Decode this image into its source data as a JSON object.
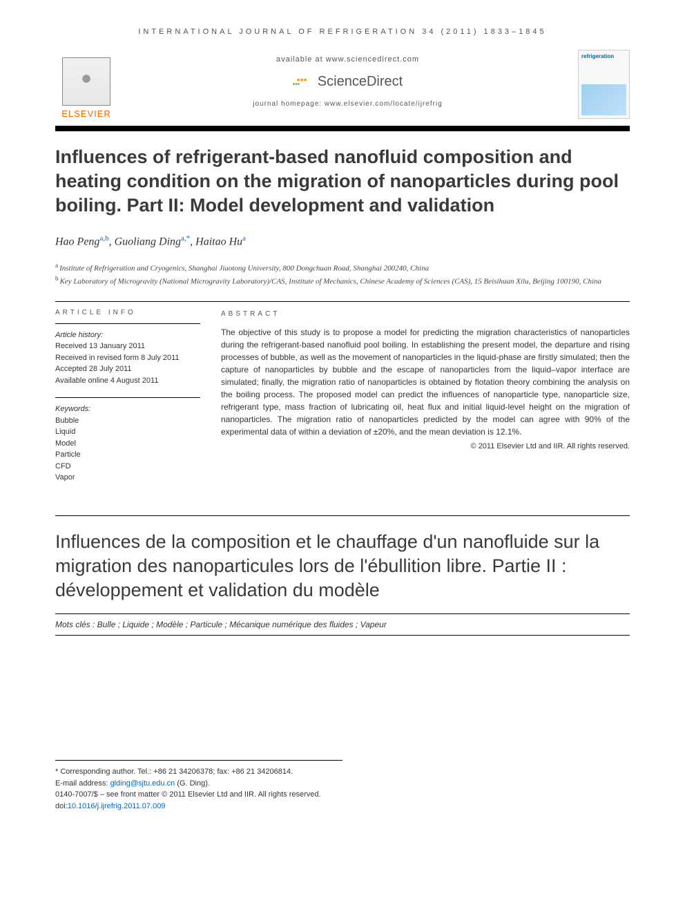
{
  "journal_header": "INTERNATIONAL JOURNAL OF REFRIGERATION 34 (2011) 1833–1845",
  "publisher": {
    "elsevier": "ELSEVIER",
    "available_at": "available at www.sciencedirect.com",
    "sciencedirect": "ScienceDirect",
    "homepage": "journal homepage: www.elsevier.com/locate/ijrefrig",
    "cover_title": "refrigeration"
  },
  "title": "Influences of refrigerant-based nanofluid composition and heating condition on the migration of nanoparticles during pool boiling. Part II: Model development and validation",
  "authors": {
    "a1_name": "Hao Peng",
    "a1_sup": "a,b",
    "a2_name": "Guoliang Ding",
    "a2_sup": "a,*",
    "a3_name": "Haitao Hu",
    "a3_sup": "a"
  },
  "affiliations": {
    "a": "Institute of Refrigeration and Cryogenics, Shanghai Jiaotong University, 800 Dongchuan Road, Shanghai 200240, China",
    "b": "Key Laboratory of Microgravity (National Microgravity Laboratory)/CAS, Institute of Mechanics, Chinese Academy of Sciences (CAS), 15 Beisihuan Xilu, Beijing 100190, China"
  },
  "article_info": {
    "header": "ARTICLE INFO",
    "history_label": "Article history:",
    "received": "Received 13 January 2011",
    "revised": "Received in revised form 8 July 2011",
    "accepted": "Accepted 28 July 2011",
    "online": "Available online 4 August 2011",
    "keywords_label": "Keywords:",
    "keywords": [
      "Bubble",
      "Liquid",
      "Model",
      "Particle",
      "CFD",
      "Vapor"
    ]
  },
  "abstract": {
    "header": "ABSTRACT",
    "text": "The objective of this study is to propose a model for predicting the migration characteristics of nanoparticles during the refrigerant-based nanofluid pool boiling. In establishing the present model, the departure and rising processes of bubble, as well as the movement of nanoparticles in the liquid-phase are firstly simulated; then the capture of nanoparticles by bubble and the escape of nanoparticles from the liquid–vapor interface are simulated; finally, the migration ratio of nanoparticles is obtained by flotation theory combining the analysis on the boiling process. The proposed model can predict the influences of nanoparticle type, nanoparticle size, refrigerant type, mass fraction of lubricating oil, heat flux and initial liquid-level height on the migration of nanoparticles. The migration ratio of nanoparticles predicted by the model can agree with 90% of the experimental data of within a deviation of ±20%, and the mean deviation is 12.1%.",
    "copyright": "© 2011 Elsevier Ltd and IIR. All rights reserved."
  },
  "french": {
    "title": "Influences de la composition et le chauffage d'un nanofluide sur la migration des nanoparticules lors de l'ébullition libre. Partie II : développement et validation du modèle",
    "mots_cles": "Mots clés : Bulle ; Liquide ; Modèle ; Particule ; Mécanique numérique des fluides ; Vapeur"
  },
  "footer": {
    "corresponding": "* Corresponding author. Tel.: +86 21 34206378; fax: +86 21 34206814.",
    "email_label": "E-mail address: ",
    "email": "glding@sjtu.edu.cn",
    "email_paren": " (G. Ding).",
    "issn": "0140-7007/$ – see front matter © 2011 Elsevier Ltd and IIR. All rights reserved.",
    "doi_label": "doi:",
    "doi": "10.1016/j.ijrefrig.2011.07.009"
  }
}
